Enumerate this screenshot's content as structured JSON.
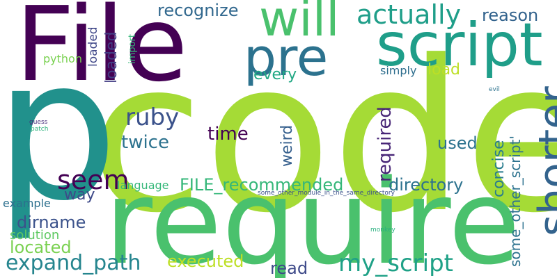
{
  "word_cloud": {
    "words": [
      {
        "text": "code",
        "color": "#a5db36"
      },
      {
        "text": "p",
        "color": "#21918c"
      },
      {
        "text": "require",
        "color": "#4ac16d"
      },
      {
        "text": "File",
        "color": "#440154"
      },
      {
        "text": "script",
        "color": "#1f9e89"
      },
      {
        "text": "pre",
        "color": "#2c728e"
      },
      {
        "text": "will",
        "color": "#4ac16d"
      },
      {
        "text": "shorter",
        "color": "#33638d"
      },
      {
        "text": "actually",
        "color": "#1f9e89"
      },
      {
        "text": "recognize",
        "color": "#31688e"
      },
      {
        "text": "reason",
        "color": "#33638d"
      },
      {
        "text": "loaded",
        "color": "#433e85"
      },
      {
        "text": "loaded",
        "color": "#3f4788"
      },
      {
        "text": "import",
        "color": "#35b779"
      },
      {
        "text": "python",
        "color": "#7ad151"
      },
      {
        "text": "every",
        "color": "#22a884"
      },
      {
        "text": "load",
        "color": "#bddf26"
      },
      {
        "text": "simply",
        "color": "#2e6e8e"
      },
      {
        "text": "ruby",
        "color": "#3b528b"
      },
      {
        "text": "time",
        "color": "#440154"
      },
      {
        "text": "twice",
        "color": "#2c728e"
      },
      {
        "text": "weird",
        "color": "#355f8d"
      },
      {
        "text": "required",
        "color": "#482677"
      },
      {
        "text": "concise",
        "color": "#287c8e"
      },
      {
        "text": "some_other_script'",
        "color": "#2c728e"
      },
      {
        "text": "used",
        "color": "#2c728e"
      },
      {
        "text": "seem",
        "color": "#440154"
      },
      {
        "text": "FILE_recommended",
        "color": "#35b779"
      },
      {
        "text": "directory",
        "color": "#2c728e"
      },
      {
        "text": "language",
        "color": "#35b779"
      },
      {
        "text": "way",
        "color": "#3e4a89"
      },
      {
        "text": "example",
        "color": "#2d708e"
      },
      {
        "text": "dirname",
        "color": "#3b528b"
      },
      {
        "text": "solution",
        "color": "#5ec962"
      },
      {
        "text": "located",
        "color": "#7ad151"
      },
      {
        "text": "expand_path",
        "color": "#25858e"
      },
      {
        "text": "executed",
        "color": "#bddf26"
      },
      {
        "text": "read",
        "color": "#3e4a89"
      },
      {
        "text": "my_script",
        "color": "#1fa187"
      },
      {
        "text": "some_other_module_in_the_same_directory",
        "color": "#3b528b"
      },
      {
        "text": "guess",
        "color": "#472d7b"
      },
      {
        "text": "patch",
        "color": "#2db27d"
      },
      {
        "text": "evil",
        "color": "#2c728e"
      },
      {
        "text": "monkey",
        "color": "#29af7f"
      }
    ]
  }
}
